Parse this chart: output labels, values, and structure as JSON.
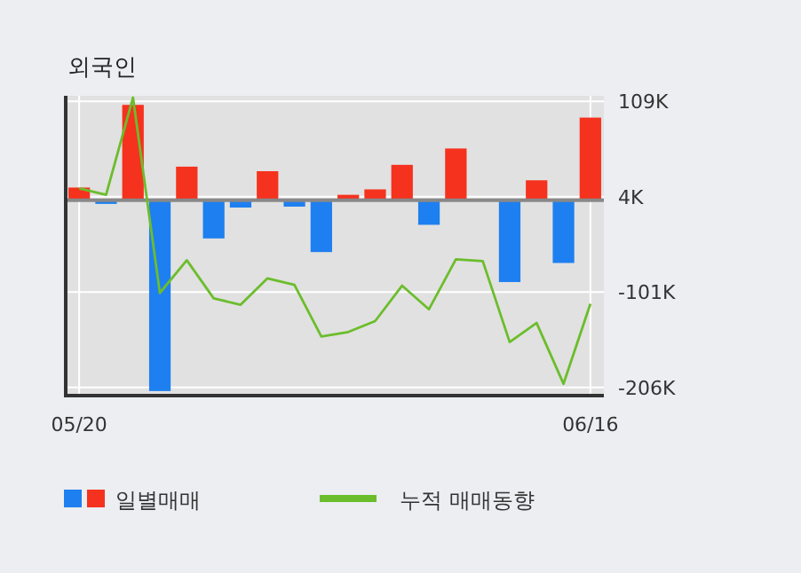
{
  "chart_data": {
    "type": "bar",
    "title": "외국인",
    "categories": [
      "05/20",
      null,
      null,
      null,
      null,
      null,
      null,
      null,
      null,
      null,
      null,
      null,
      null,
      null,
      null,
      null,
      null,
      null,
      null,
      "06/16"
    ],
    "series": [
      {
        "name": "일별매매",
        "colors": [
          "#f5321e",
          "#1e7ff0",
          "#f5321e",
          "#1e7ff0",
          "#f5321e",
          "#1e7ff0",
          "#1e7ff0",
          "#f5321e",
          "#1e7ff0",
          "#1e7ff0",
          "#f5321e",
          "#f5321e",
          "#f5321e",
          "#1e7ff0",
          "#f5321e",
          "#1e7ff0",
          "#1e7ff0",
          "#f5321e",
          "#1e7ff0",
          "#f5321e"
        ],
        "values": [
          14,
          -4,
          105,
          -210,
          37,
          -42,
          -8,
          32,
          -7,
          -57,
          6,
          12,
          39,
          -27,
          57,
          0,
          -90,
          22,
          -69,
          91
        ]
      },
      {
        "name": "누적 매매동향",
        "type": "line",
        "color": "#6cbd2c",
        "values": [
          13,
          6,
          113,
          -102,
          -66,
          -108,
          -115,
          -86,
          -93,
          -150,
          -145,
          -133,
          -94,
          -120,
          -65,
          -67,
          -156,
          -135,
          -202,
          -114
        ]
      }
    ],
    "ylim": [
      -215,
      115
    ],
    "yticks": [
      {
        "value": 109,
        "label": "109K"
      },
      {
        "value": 4,
        "label": "4K"
      },
      {
        "value": -101,
        "label": "-101K"
      },
      {
        "value": -206,
        "label": "-206K"
      }
    ],
    "grid": true,
    "legend": "bottom",
    "marker": "none"
  }
}
